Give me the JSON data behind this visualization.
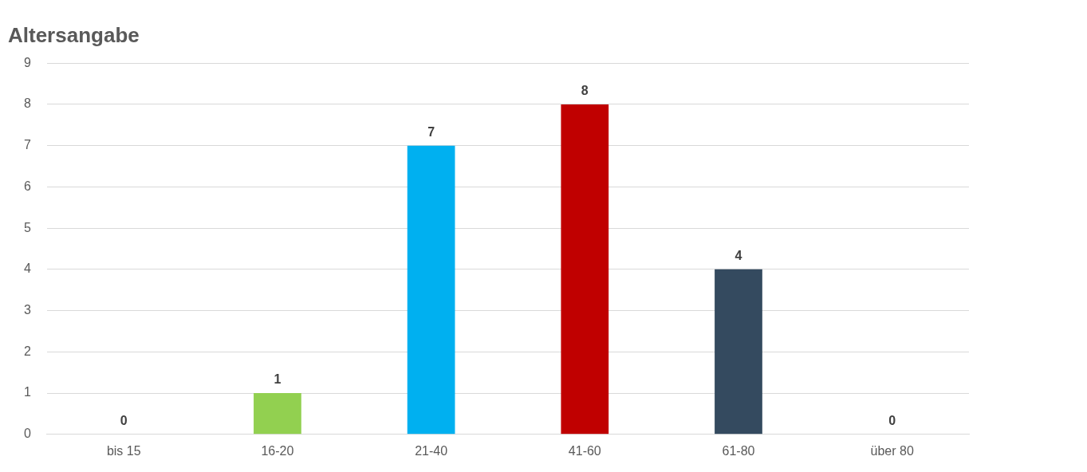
{
  "chart_data": {
    "type": "bar",
    "title": "Altersangabe",
    "categories": [
      "bis 15",
      "16-20",
      "21-40",
      "41-60",
      "61-80",
      "über 80"
    ],
    "values": [
      0,
      1,
      7,
      8,
      4,
      0
    ],
    "colors": [
      "#7f7f7f",
      "#92d050",
      "#00b0f0",
      "#c00000",
      "#344a5f",
      "#7f7f7f"
    ],
    "ylim": [
      0,
      9
    ],
    "yticks": [
      0,
      1,
      2,
      3,
      4,
      5,
      6,
      7,
      8,
      9
    ],
    "grid": "y",
    "legend": false,
    "data_labels": true
  }
}
